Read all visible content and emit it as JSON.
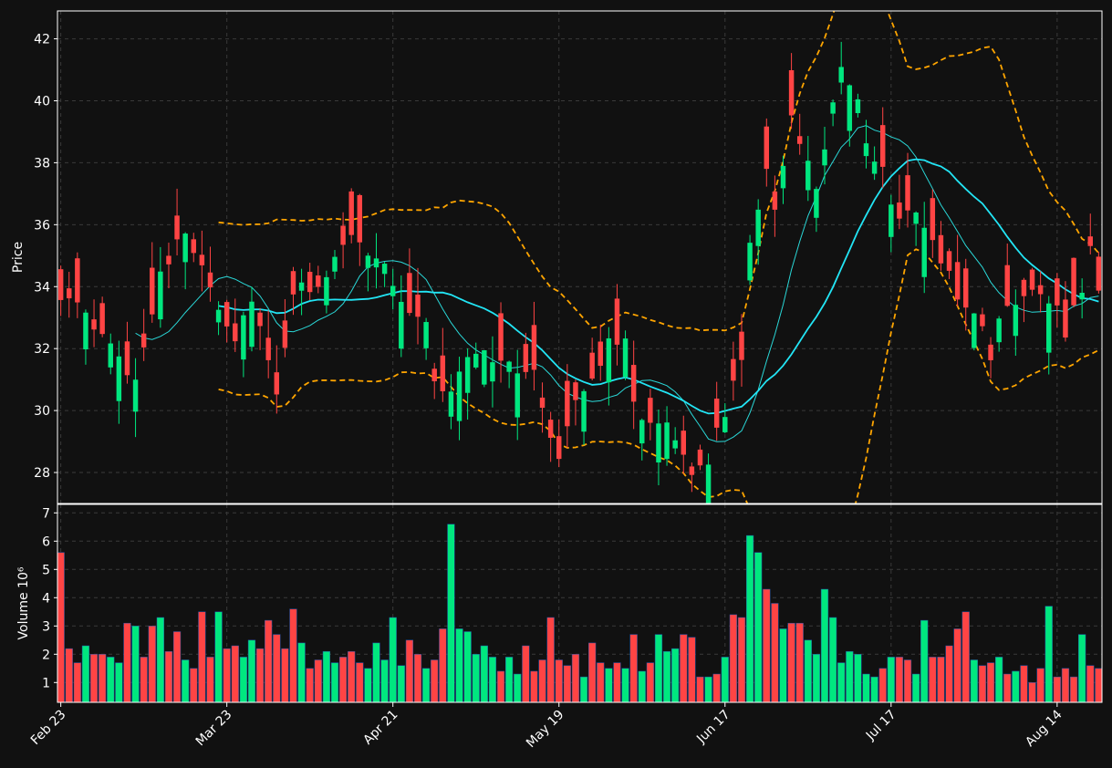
{
  "chart_data": {
    "type": "candlestick",
    "theme": {
      "background": "#111111",
      "grid": "#3a3a3a",
      "up_color": "#00e77f",
      "down_color": "#ff4444",
      "ma_fast_color": "#2ad8d8",
      "ma_slow_color": "#22e5f5",
      "band_color": "#ffa500",
      "axis_color": "#ffffff"
    },
    "price_axis": {
      "label": "Price",
      "ylim": [
        27.0,
        42.9
      ],
      "ticks": [
        28,
        30,
        32,
        34,
        36,
        38,
        40,
        42
      ]
    },
    "volume_axis": {
      "label": "Volume",
      "exponent_label": "10⁶",
      "ylim": [
        0.3,
        7.3
      ],
      "ticks": [
        1,
        2,
        3,
        4,
        5,
        6,
        7
      ]
    },
    "x_ticks": [
      {
        "index": 0,
        "label": "Feb 23"
      },
      {
        "index": 20,
        "label": "Mar 23"
      },
      {
        "index": 40,
        "label": "Apr 21"
      },
      {
        "index": 60,
        "label": "May 19"
      },
      {
        "index": 80,
        "label": "Jun 17"
      },
      {
        "index": 100,
        "label": "Jul 17"
      },
      {
        "index": 120,
        "label": "Aug 14"
      }
    ],
    "x_range": [
      -0.4,
      125.4
    ],
    "ma_fast_start_index": 9,
    "ma_slow_start_index": 19,
    "bands_start_index": 19,
    "close_anchors": [
      [
        0,
        33.8
      ],
      [
        3,
        33.0
      ],
      [
        6,
        32.0
      ],
      [
        9,
        31.0
      ],
      [
        12,
        34.5
      ],
      [
        15,
        35.7
      ],
      [
        17,
        34.8
      ],
      [
        19,
        33.4
      ],
      [
        21,
        32.3
      ],
      [
        23,
        33.7
      ],
      [
        25,
        31.5
      ],
      [
        26,
        30.3
      ],
      [
        28,
        33.8
      ],
      [
        30,
        34.0
      ],
      [
        32,
        34.2
      ],
      [
        35,
        35.8
      ],
      [
        37,
        35.2
      ],
      [
        39,
        34.7
      ],
      [
        40,
        34.1
      ],
      [
        42,
        33.2
      ],
      [
        44,
        32.8
      ],
      [
        45,
        31.0
      ],
      [
        47,
        30.5
      ],
      [
        49,
        31.8
      ],
      [
        51,
        32.0
      ],
      [
        53,
        31.5
      ],
      [
        55,
        31.4
      ],
      [
        57,
        31.1
      ],
      [
        59,
        29.2
      ],
      [
        60,
        28.6
      ],
      [
        62,
        30.5
      ],
      [
        64,
        30.8
      ],
      [
        66,
        32.2
      ],
      [
        68,
        32.5
      ],
      [
        69,
        30.4
      ],
      [
        71,
        29.4
      ],
      [
        73,
        29.5
      ],
      [
        74,
        28.8
      ],
      [
        76,
        27.9
      ],
      [
        77,
        28.2
      ],
      [
        78,
        28.5
      ],
      [
        80,
        29.9
      ],
      [
        82,
        31.8
      ],
      [
        83,
        35.5
      ],
      [
        85,
        37.8
      ],
      [
        86,
        36.6
      ],
      [
        88,
        39.5
      ],
      [
        89,
        38.5
      ],
      [
        91,
        37.2
      ],
      [
        92,
        38.4
      ],
      [
        93,
        40.0
      ],
      [
        94,
        41.0
      ],
      [
        96,
        39.8
      ],
      [
        97,
        38.5
      ],
      [
        99,
        37.8
      ],
      [
        100,
        36.5
      ],
      [
        102,
        36.3
      ],
      [
        104,
        36.0
      ],
      [
        106,
        35.0
      ],
      [
        108,
        33.6
      ],
      [
        110,
        33.3
      ],
      [
        111,
        32.5
      ],
      [
        112,
        31.6
      ],
      [
        113,
        33.0
      ],
      [
        115,
        33.6
      ],
      [
        117,
        34.0
      ],
      [
        119,
        33.7
      ],
      [
        120,
        33.2
      ],
      [
        121,
        32.5
      ],
      [
        123,
        34.0
      ],
      [
        124,
        35.2
      ],
      [
        125,
        33.9
      ]
    ],
    "volume_values": [
      5.6,
      2.2,
      1.7,
      2.3,
      2.0,
      2.0,
      1.9,
      1.7,
      3.1,
      3.0,
      1.9,
      3.0,
      3.3,
      2.1,
      2.8,
      1.8,
      1.5,
      3.5,
      1.9,
      3.5,
      2.2,
      2.3,
      1.9,
      2.5,
      2.2,
      3.2,
      2.7,
      2.2,
      3.6,
      2.4,
      1.5,
      1.8,
      2.1,
      1.7,
      1.9,
      2.1,
      1.7,
      1.5,
      2.4,
      1.8,
      3.3,
      1.6,
      2.5,
      2.0,
      1.5,
      1.8,
      2.9,
      6.6,
      2.9,
      2.8,
      2.0,
      2.3,
      1.9,
      1.4,
      1.9,
      1.3,
      2.3,
      1.4,
      1.8,
      3.3,
      1.8,
      1.6,
      2.0,
      1.2,
      2.4,
      1.7,
      1.5,
      1.7,
      1.5,
      2.7,
      1.4,
      1.7,
      2.7,
      2.1,
      2.2,
      2.7,
      2.6,
      1.2,
      1.2,
      1.3,
      1.9,
      3.4,
      3.3,
      6.2,
      5.6,
      4.3,
      3.8,
      2.9,
      3.1,
      3.1,
      2.5,
      2.0,
      4.3,
      3.3,
      1.7,
      2.1,
      2.0,
      1.3,
      1.2,
      1.5,
      1.9,
      1.9,
      1.8,
      1.3,
      3.2,
      1.9,
      1.9,
      2.3,
      2.9,
      3.5,
      1.8,
      1.6,
      1.7,
      1.9,
      1.3,
      1.4,
      1.6,
      1.0,
      1.5,
      3.7,
      1.2,
      1.5,
      1.2,
      2.7,
      1.6,
      1.5
    ]
  }
}
